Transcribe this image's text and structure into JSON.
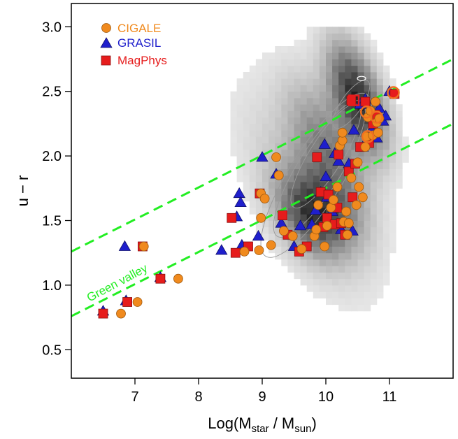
{
  "chart_data": {
    "type": "scatter",
    "title": "",
    "xlabel": "Log(M",
    "xlabel_sub1": "star",
    "xlabel_mid": " / M",
    "xlabel_sub2": "sun",
    "xlabel_end": ")",
    "ylabel": "u − r",
    "xlim": [
      6.0,
      12.0
    ],
    "ylim": [
      0.28,
      3.18
    ],
    "xticks": [
      7,
      8,
      9,
      10,
      11
    ],
    "yticks": [
      0.5,
      1.0,
      1.5,
      2.0,
      2.5,
      3.0
    ],
    "xtick_labels": [
      "7",
      "8",
      "9",
      "10",
      "11"
    ],
    "ytick_labels": [
      "0.5",
      "1.0",
      "1.5",
      "2.0",
      "2.5",
      "3.0"
    ],
    "grid": false,
    "legend_position": "top-left",
    "annotation": {
      "text": "Green valley",
      "color": "#22ee22"
    },
    "green_valley_lines": [
      {
        "x": [
          6.0,
          12.0
        ],
        "y": [
          1.26,
          2.75
        ]
      },
      {
        "x": [
          6.0,
          12.0
        ],
        "y": [
          0.76,
          2.25
        ]
      }
    ],
    "density_background": {
      "color_low": "#f2f2f2",
      "color_high": "#1a1a1a",
      "contour_color": "#9a9a9a"
    },
    "series": [
      {
        "name": "CIGALE",
        "marker": "circle",
        "color": "#f08a1e",
        "points": [
          [
            6.78,
            0.78
          ],
          [
            7.04,
            0.87
          ],
          [
            7.14,
            1.3
          ],
          [
            7.68,
            1.05
          ],
          [
            8.72,
            1.26
          ],
          [
            8.95,
            1.27
          ],
          [
            8.98,
            1.52
          ],
          [
            8.98,
            1.71
          ],
          [
            9.04,
            1.67
          ],
          [
            9.14,
            1.31
          ],
          [
            9.22,
            1.99
          ],
          [
            9.26,
            1.85
          ],
          [
            9.34,
            1.42
          ],
          [
            9.48,
            1.38
          ],
          [
            9.62,
            1.28
          ],
          [
            9.82,
            1.38
          ],
          [
            9.85,
            1.43
          ],
          [
            9.88,
            1.62
          ],
          [
            9.98,
            1.3
          ],
          [
            10.02,
            1.46
          ],
          [
            10.08,
            1.6
          ],
          [
            10.12,
            1.66
          ],
          [
            10.18,
            1.76
          ],
          [
            10.22,
            2.08
          ],
          [
            10.26,
            2.12
          ],
          [
            10.26,
            2.18
          ],
          [
            10.28,
            1.49
          ],
          [
            10.32,
            1.57
          ],
          [
            10.34,
            1.39
          ],
          [
            10.36,
            1.48
          ],
          [
            10.4,
            1.83
          ],
          [
            10.48,
            1.62
          ],
          [
            10.5,
            1.95
          ],
          [
            10.52,
            1.76
          ],
          [
            10.58,
            1.68
          ],
          [
            10.62,
            2.07
          ],
          [
            10.64,
            2.15
          ],
          [
            10.66,
            2.3
          ],
          [
            10.7,
            2.35
          ],
          [
            10.74,
            2.16
          ],
          [
            10.78,
            2.42
          ],
          [
            10.8,
            2.26
          ],
          [
            10.82,
            2.18
          ],
          [
            10.84,
            2.29
          ]
        ]
      },
      {
        "name": "GRASIL",
        "marker": "triangle",
        "color": "#1f1fcc",
        "points": [
          [
            6.5,
            0.8
          ],
          [
            6.84,
            1.3
          ],
          [
            6.86,
            0.88
          ],
          [
            7.4,
            1.06
          ],
          [
            8.36,
            1.27
          ],
          [
            8.6,
            1.53
          ],
          [
            8.64,
            1.71
          ],
          [
            8.66,
            1.64
          ],
          [
            8.68,
            1.31
          ],
          [
            8.94,
            1.38
          ],
          [
            9.0,
            1.99
          ],
          [
            9.22,
            1.86
          ],
          [
            9.3,
            1.48
          ],
          [
            9.5,
            1.3
          ],
          [
            9.6,
            1.46
          ],
          [
            9.78,
            1.47
          ],
          [
            9.84,
            1.58
          ],
          [
            9.92,
            1.72
          ],
          [
            9.98,
            2.09
          ],
          [
            10.0,
            1.84
          ],
          [
            10.02,
            1.68
          ],
          [
            10.1,
            1.57
          ],
          [
            10.14,
            2.02
          ],
          [
            10.2,
            1.96
          ],
          [
            10.24,
            1.43
          ],
          [
            10.36,
            1.94
          ],
          [
            10.42,
            1.42
          ],
          [
            10.44,
            2.2
          ],
          [
            10.54,
            2.4
          ],
          [
            10.58,
            2.07
          ],
          [
            10.62,
            2.44
          ],
          [
            10.72,
            2.2
          ],
          [
            10.8,
            2.14
          ],
          [
            10.84,
            2.37
          ],
          [
            10.9,
            2.27
          ],
          [
            10.94,
            2.31
          ],
          [
            11.0,
            2.5
          ]
        ]
      },
      {
        "name": "MagPhys",
        "marker": "square",
        "color": "#e61c1c",
        "points": [
          [
            6.5,
            0.78
          ],
          [
            6.88,
            0.87
          ],
          [
            7.12,
            1.3
          ],
          [
            7.4,
            1.05
          ],
          [
            8.52,
            1.52
          ],
          [
            8.58,
            1.25
          ],
          [
            8.78,
            1.3
          ],
          [
            8.96,
            1.71
          ],
          [
            9.32,
            1.54
          ],
          [
            9.4,
            1.39
          ],
          [
            9.58,
            1.26
          ],
          [
            9.7,
            1.3
          ],
          [
            9.86,
            1.99
          ],
          [
            9.92,
            1.72
          ],
          [
            9.96,
            1.45
          ],
          [
            10.02,
            1.52
          ],
          [
            10.04,
            1.7
          ],
          [
            10.14,
            1.47
          ],
          [
            10.18,
            1.6
          ],
          [
            10.2,
            2.01
          ],
          [
            10.24,
            1.48
          ],
          [
            10.3,
            1.39
          ],
          [
            10.36,
            1.88
          ],
          [
            10.4,
            2.43
          ],
          [
            10.42,
            1.68
          ],
          [
            10.46,
            1.94
          ],
          [
            10.54,
            2.07
          ],
          [
            10.62,
            2.42
          ],
          [
            10.68,
            2.1
          ],
          [
            10.74,
            2.25
          ],
          [
            10.78,
            2.32
          ],
          [
            11.08,
            2.48
          ]
        ]
      }
    ]
  }
}
